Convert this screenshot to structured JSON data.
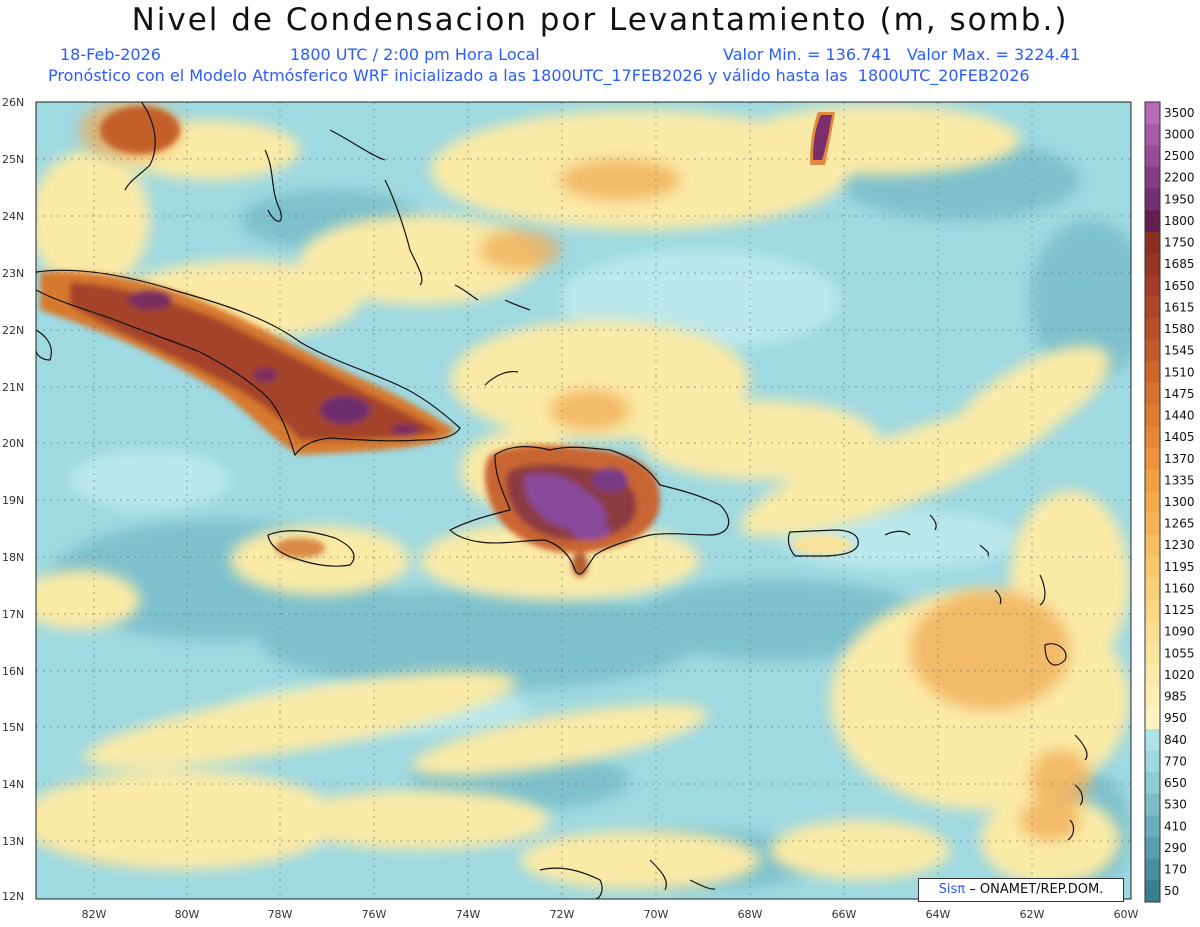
{
  "header": {
    "title": "Nivel de Condensacion por Levantamiento (m, somb.)",
    "date": "18-Feb-2026",
    "time": "1800 UTC / 2:00 pm Hora Local",
    "minmax": "Valor Min. = 136.741   Valor Max. = 3224.41",
    "info": "Pronóstico con el Modelo Atmósferico WRF inicializado a las 1800UTC_17FEB2026 y válido hasta las  1800UTC_20FEB2026"
  },
  "map": {
    "lat_labels": [
      "26N",
      "25N",
      "24N",
      "23N",
      "22N",
      "21N",
      "20N",
      "19N",
      "18N",
      "17N",
      "16N",
      "15N",
      "14N",
      "13N",
      "12N"
    ],
    "lon_labels": [
      "82W",
      "80W",
      "78W",
      "76W",
      "74W",
      "72W",
      "70W",
      "68W",
      "66W",
      "64W",
      "62W",
      "60W"
    ]
  },
  "colorbar": {
    "levels": [
      "3500",
      "3000",
      "2500",
      "2200",
      "1950",
      "1800",
      "1750",
      "1685",
      "1650",
      "1615",
      "1580",
      "1545",
      "1510",
      "1475",
      "1440",
      "1405",
      "1370",
      "1335",
      "1300",
      "1265",
      "1230",
      "1195",
      "1160",
      "1125",
      "1090",
      "1055",
      "1020",
      "985",
      "950",
      "840",
      "770",
      "650",
      "530",
      "410",
      "290",
      "170",
      "50"
    ],
    "colors": [
      "#b869b8",
      "#a85aa8",
      "#964c96",
      "#843e84",
      "#733073",
      "#631f4f",
      "#8a2f22",
      "#963624",
      "#a13d26",
      "#ad4628",
      "#b9502a",
      "#c45a2b",
      "#cf652d",
      "#d8702f",
      "#e07b33",
      "#e68738",
      "#eb933d",
      "#ef9f44",
      "#f2aa4c",
      "#f4b456",
      "#f6be61",
      "#f7c76d",
      "#f8cf79",
      "#f9d785",
      "#fade91",
      "#fbe49d",
      "#fce9a9",
      "#fdeeb5",
      "#fdf2c0",
      "#ace4ea",
      "#9dd8e0",
      "#8ccad4",
      "#7bbcc8",
      "#6aaebb",
      "#599fae",
      "#4890a0",
      "#387f91"
    ]
  },
  "credit": {
    "brand": "Sisπ",
    "text": "– ONAMET/REP.DOM."
  }
}
